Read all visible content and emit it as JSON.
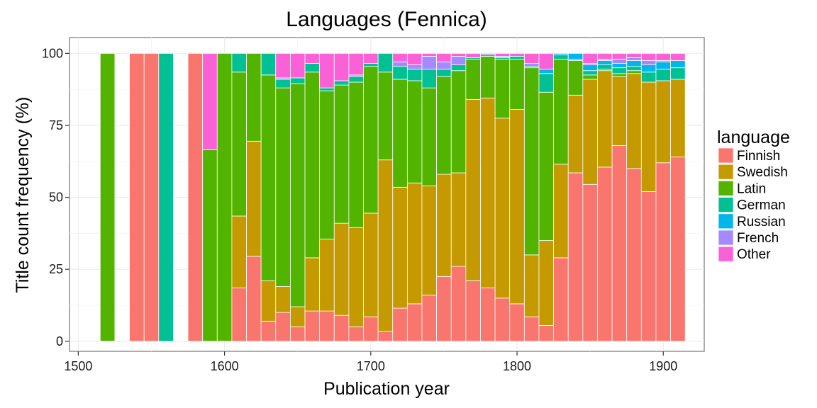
{
  "chart_data": {
    "type": "bar",
    "stacked": true,
    "title": "Languages (Fennica)",
    "xlabel": "Publication year",
    "ylabel": "Title count frequency (%)",
    "xlim": [
      1494,
      1928
    ],
    "ylim": [
      -3.5,
      105.5
    ],
    "bin_width": 10,
    "xticks": [
      1500,
      1600,
      1700,
      1800,
      1900
    ],
    "yticks": [
      0,
      25,
      50,
      75,
      100
    ],
    "grid": true,
    "legend_position": "right",
    "legend_title": "language",
    "series": [
      {
        "name": "Finnish",
        "color": "#F8766D"
      },
      {
        "name": "Swedish",
        "color": "#C49A00"
      },
      {
        "name": "Latin",
        "color": "#53B400"
      },
      {
        "name": "German",
        "color": "#00C094"
      },
      {
        "name": "Russian",
        "color": "#00B6EB"
      },
      {
        "name": "French",
        "color": "#A58AFF"
      },
      {
        "name": "Other",
        "color": "#FB61D7"
      }
    ],
    "bars": [
      {
        "x": 1520,
        "values": [
          0,
          0,
          100,
          0,
          0,
          0,
          0
        ]
      },
      {
        "x": 1540,
        "values": [
          100,
          0,
          0,
          0,
          0,
          0,
          0
        ]
      },
      {
        "x": 1550,
        "values": [
          100,
          0,
          0,
          0,
          0,
          0,
          0
        ]
      },
      {
        "x": 1560,
        "values": [
          0,
          0,
          0,
          100,
          0,
          0,
          0
        ]
      },
      {
        "x": 1580,
        "values": [
          100,
          0,
          0,
          0,
          0,
          0,
          0
        ]
      },
      {
        "x": 1590,
        "values": [
          0,
          0,
          66.5,
          0,
          0,
          0,
          33.5
        ]
      },
      {
        "x": 1600,
        "values": [
          0,
          0,
          100,
          0,
          0,
          0,
          0
        ]
      },
      {
        "x": 1610,
        "values": [
          18.5,
          25,
          50,
          6.5,
          0,
          0,
          0
        ]
      },
      {
        "x": 1620,
        "values": [
          29.5,
          40,
          30.5,
          0,
          0,
          0,
          0
        ]
      },
      {
        "x": 1630,
        "values": [
          7,
          14,
          71.5,
          7.5,
          0,
          0,
          0
        ]
      },
      {
        "x": 1640,
        "values": [
          10,
          9,
          69,
          3,
          0,
          0.5,
          8.5
        ]
      },
      {
        "x": 1650,
        "values": [
          5,
          7,
          77.5,
          2,
          0,
          0,
          8.5
        ]
      },
      {
        "x": 1660,
        "values": [
          10.5,
          18.5,
          64.5,
          3,
          0,
          0,
          3.5
        ]
      },
      {
        "x": 1670,
        "values": [
          10.5,
          25,
          51.5,
          1,
          0,
          0,
          12
        ]
      },
      {
        "x": 1680,
        "values": [
          9,
          32,
          48,
          1.5,
          0,
          0,
          9.5
        ]
      },
      {
        "x": 1690,
        "values": [
          5,
          34.5,
          50.5,
          2,
          0,
          0.5,
          7.5
        ]
      },
      {
        "x": 1700,
        "values": [
          8.5,
          36,
          51,
          1,
          0,
          0,
          3.5
        ]
      },
      {
        "x": 1710,
        "values": [
          3.5,
          59.5,
          30.5,
          6.5,
          0,
          0,
          0
        ]
      },
      {
        "x": 1720,
        "values": [
          11.5,
          42,
          37.5,
          4.5,
          0,
          1.5,
          3
        ]
      },
      {
        "x": 1730,
        "values": [
          13,
          42,
          35.5,
          4,
          0,
          1.5,
          4
        ]
      },
      {
        "x": 1740,
        "values": [
          16,
          38,
          34,
          6.5,
          0,
          4.5,
          1
        ]
      },
      {
        "x": 1750,
        "values": [
          22.5,
          35.5,
          34,
          2.5,
          0,
          2.5,
          3
        ]
      },
      {
        "x": 1760,
        "values": [
          26,
          32.5,
          35.5,
          2,
          0,
          3,
          1
        ]
      },
      {
        "x": 1770,
        "values": [
          21,
          63,
          14,
          0.5,
          0,
          0,
          1.5
        ]
      },
      {
        "x": 1780,
        "values": [
          18.5,
          66,
          14.5,
          0.5,
          0,
          0.5,
          0
        ]
      },
      {
        "x": 1790,
        "values": [
          15,
          62.5,
          20.5,
          0.5,
          0,
          0.5,
          1
        ]
      },
      {
        "x": 1800,
        "values": [
          13,
          67.5,
          17.5,
          1,
          0,
          0,
          1
        ]
      },
      {
        "x": 1810,
        "values": [
          8.5,
          21.5,
          65,
          0.5,
          0,
          1,
          3.5
        ]
      },
      {
        "x": 1820,
        "values": [
          5.5,
          29.5,
          51.5,
          6.5,
          1.5,
          0,
          5.5
        ]
      },
      {
        "x": 1830,
        "values": [
          29,
          32.5,
          36.5,
          1.5,
          0.5,
          0,
          0
        ]
      },
      {
        "x": 1840,
        "values": [
          58.5,
          27,
          12,
          0.5,
          2,
          0,
          0
        ]
      },
      {
        "x": 1850,
        "values": [
          54.5,
          36.5,
          1.5,
          1.5,
          2,
          0.5,
          3.5
        ]
      },
      {
        "x": 1860,
        "values": [
          60.5,
          33.5,
          0.5,
          1.5,
          1.5,
          0.5,
          2
        ]
      },
      {
        "x": 1870,
        "values": [
          68,
          24,
          1,
          2,
          1.5,
          1.5,
          2
        ]
      },
      {
        "x": 1880,
        "values": [
          60,
          33,
          1,
          1.5,
          2,
          1,
          1.5
        ]
      },
      {
        "x": 1890,
        "values": [
          52,
          38,
          0,
          3.5,
          2.5,
          1.5,
          2.5
        ]
      },
      {
        "x": 1900,
        "values": [
          62,
          28.5,
          0,
          4,
          2.5,
          0.5,
          2.5
        ]
      },
      {
        "x": 1910,
        "values": [
          64,
          27,
          0,
          4,
          2.5,
          0,
          2.5
        ]
      }
    ]
  }
}
